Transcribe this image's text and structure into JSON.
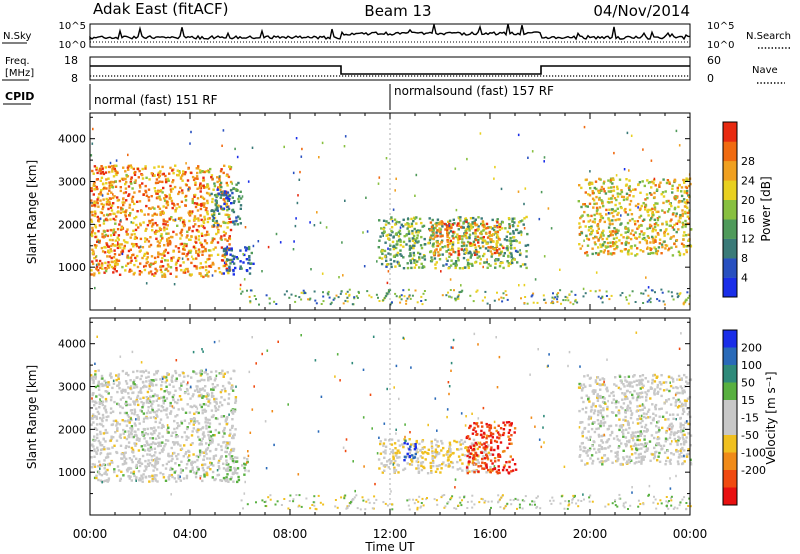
{
  "header": {
    "site": "Adak East (fitACF)",
    "beam": "Beam 13",
    "date": "04/Nov/2014"
  },
  "noise_panel": {
    "left_label": "N.Sky",
    "right_label": "N.Search",
    "left_ticks": [
      "10^5",
      "10^0"
    ],
    "right_ticks": [
      "10^5",
      "10^0"
    ]
  },
  "freq_panel": {
    "left_label_line1": "Freq.",
    "left_label_line2": "[MHz]",
    "right_label": "Nave",
    "left_ticks": [
      "18",
      "8"
    ],
    "right_ticks": [
      "60",
      "0"
    ]
  },
  "cpid": {
    "label": "CPID",
    "segments": [
      {
        "text": "normal (fast) 151 RF",
        "start_hour": 0,
        "end_hour": 12
      },
      {
        "text": "normalsound (fast) 157 RF",
        "start_hour": 12,
        "end_hour": 24
      }
    ]
  },
  "colors": {
    "power_scale": [
      "#1a2ee8",
      "#2850c0",
      "#3a7a78",
      "#4f9a5a",
      "#88c040",
      "#e8d020",
      "#f0a020",
      "#f06a10",
      "#e82a10"
    ],
    "velocity_scale": [
      "#1a2ee8",
      "#2a6ab8",
      "#2f8a7a",
      "#58b040",
      "#c8c8c8",
      "#c8c8c8",
      "#f0c020",
      "#f08a18",
      "#f04a10",
      "#e81010"
    ]
  },
  "chart_data": [
    {
      "type": "heatmap",
      "name": "power",
      "ylabel": "Slant Range [km]",
      "yticks": [
        1000,
        2000,
        3000,
        4000
      ],
      "ylim": [
        0,
        4600
      ],
      "xlim": [
        0,
        24
      ],
      "colorbar": {
        "label": "Power [dB]",
        "ticks": [
          "4",
          "8",
          "12",
          "16",
          "20",
          "24",
          "28"
        ],
        "range": [
          0,
          32
        ]
      },
      "features": [
        {
          "start_hour": 0.0,
          "end_hour": 5.6,
          "range_low": 800,
          "range_high": 3400,
          "value": 24
        },
        {
          "start_hour": 4.8,
          "end_hour": 6.0,
          "range_low": 2000,
          "range_high": 3000,
          "value": 8
        },
        {
          "start_hour": 5.3,
          "end_hour": 6.5,
          "range_low": 850,
          "range_high": 1500,
          "value": 6
        },
        {
          "start_hour": 11.5,
          "end_hour": 17.5,
          "range_low": 1000,
          "range_high": 2200,
          "value": 14
        },
        {
          "start_hour": 13.5,
          "end_hour": 16.5,
          "range_low": 1300,
          "range_high": 2100,
          "value": 24
        },
        {
          "start_hour": 19.5,
          "end_hour": 24.0,
          "range_low": 1300,
          "range_high": 3100,
          "value": 20
        }
      ]
    },
    {
      "type": "heatmap",
      "name": "velocity",
      "ylabel": "Slant Range [km]",
      "yticks": [
        1000,
        2000,
        3000,
        4000
      ],
      "ylim": [
        0,
        4600
      ],
      "xlim": [
        0,
        24
      ],
      "xlabel": "Time UT",
      "xticks": [
        "00:00",
        "04:00",
        "08:00",
        "12:00",
        "16:00",
        "20:00",
        "00:00"
      ],
      "colorbar": {
        "label": "Velocity [m s⁻¹]",
        "ticks": [
          "200",
          "100",
          "50",
          "15",
          "-15",
          "-50",
          "-100",
          "-200"
        ],
        "range": [
          -250,
          250
        ]
      },
      "features": [
        {
          "start_hour": 0.0,
          "end_hour": 5.8,
          "range_low": 800,
          "range_high": 3400,
          "value": 0
        },
        {
          "start_hour": 5.3,
          "end_hour": 6.3,
          "range_low": 800,
          "range_high": 1400,
          "value": 40
        },
        {
          "start_hour": 11.5,
          "end_hour": 16.0,
          "range_low": 1000,
          "range_high": 1800,
          "value": -40
        },
        {
          "start_hour": 12.5,
          "end_hour": 13.0,
          "range_low": 1300,
          "range_high": 1800,
          "value": 200
        },
        {
          "start_hour": 15.0,
          "end_hour": 17.0,
          "range_low": 1000,
          "range_high": 2200,
          "value": -200
        },
        {
          "start_hour": 19.5,
          "end_hour": 24.0,
          "range_low": 1200,
          "range_high": 3300,
          "value": 0
        }
      ]
    }
  ]
}
